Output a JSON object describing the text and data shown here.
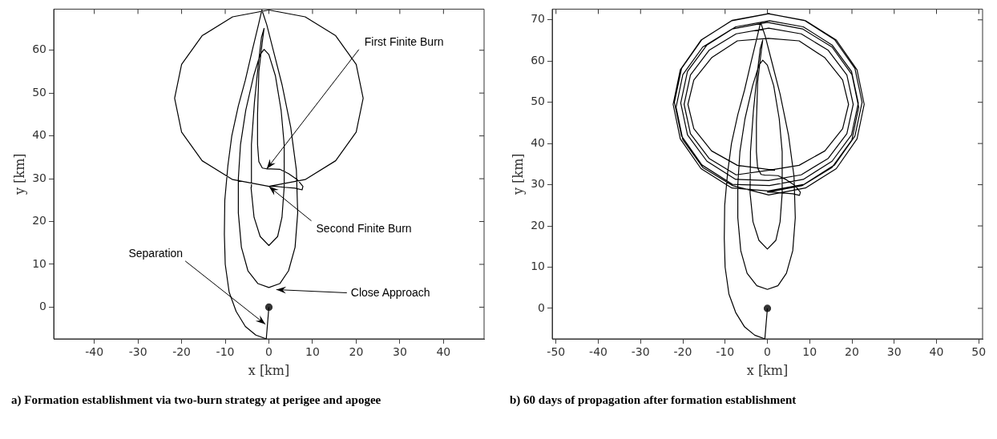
{
  "chart_data": [
    {
      "type": "line",
      "xlabel": "x [km]",
      "ylabel": "y [km]",
      "xlim": [
        -49.3,
        49.3
      ],
      "ylim": [
        -7.4,
        69.6
      ],
      "xticks": [
        -40,
        -30,
        -20,
        -10,
        0,
        10,
        20,
        30,
        40
      ],
      "yticks": [
        0,
        10,
        20,
        30,
        40,
        50,
        60
      ],
      "grid": false,
      "marker": "none",
      "series": [
        {
          "color": "#000000",
          "x": [
            0,
            -0.6,
            -3,
            -5.4,
            -7.5,
            -9.1,
            -10,
            -10.2,
            -10.1,
            -9.4,
            -8.5,
            -7,
            -5.4,
            -3.8,
            -2.5,
            -1.6,
            -0.5,
            1,
            3,
            5,
            6.3,
            6.6,
            6,
            4.5,
            2.5,
            0,
            -2.5,
            -4.8,
            -6.3,
            -7,
            -7,
            -6.5,
            -5.3,
            -3.5,
            -2,
            -1.1,
            0,
            1.5,
            2.8,
            3.5,
            3.5,
            3,
            2,
            0,
            -2,
            -3.4,
            -4.1,
            -4,
            -3.3,
            -2.4,
            -1.7,
            -1.1,
            -1.5,
            -2.3,
            -2.6,
            -2.6,
            -2.3,
            -1.5,
            -0.5,
            0.5,
            2.5,
            4.5,
            6.5,
            7.8,
            7.6,
            6,
            3.5,
            1.5,
            0,
            8.3,
            15.3,
            20.0,
            21.6,
            20.0,
            15.3,
            8.3,
            0,
            -8.3,
            -15.3,
            -20.0,
            -21.6,
            -20.0,
            -15.3,
            -8.3,
            0
          ],
          "values": [
            0,
            -7.4,
            -6.5,
            -4.5,
            -1,
            3.5,
            10,
            17,
            25,
            33,
            40,
            47,
            53,
            60,
            65.5,
            69.4,
            66,
            60,
            52,
            42,
            32,
            22,
            14,
            8.5,
            5.5,
            4.6,
            5.5,
            8.5,
            14,
            22,
            30,
            38,
            46,
            54,
            59,
            60.2,
            59,
            54,
            46,
            38,
            28,
            21,
            16.5,
            14.4,
            16.5,
            21,
            28,
            38,
            48,
            57,
            63,
            65.1,
            62,
            55,
            45,
            38,
            34,
            32.5,
            32.3,
            32.3,
            32.2,
            31.2,
            29.8,
            28.2,
            27.4,
            27.8,
            28,
            28.2,
            28.2,
            29.8,
            34.2,
            40.9,
            48.8,
            56.7,
            63.4,
            67.8,
            69.4,
            67.8,
            63.4,
            56.7,
            48.8,
            40.9,
            34.2,
            29.8,
            28.2
          ]
        },
        {
          "type": "scatter",
          "marker": "circle",
          "color": "#333333",
          "x": [
            0
          ],
          "values": [
            0
          ]
        }
      ],
      "annotations": [
        {
          "text": "First Finite Burn",
          "x": -0.5,
          "y": 32.3
        },
        {
          "text": "Second Finite Burn",
          "x": 0,
          "y": 28.2
        },
        {
          "text": "Separation",
          "x": -0.8,
          "y": -4
        },
        {
          "text": "Close Approach",
          "x": 1.7,
          "y": 4.1
        },
        "a) Formation establishment via two-burn strategy at perigee and apogee"
      ]
    },
    {
      "type": "line",
      "xlabel": "x [km]",
      "ylabel": "y [km]",
      "xlim": [
        -50.9,
        50.9
      ],
      "ylim": [
        -7.4,
        72.6
      ],
      "xticks": [
        -50,
        -40,
        -30,
        -20,
        -10,
        0,
        10,
        20,
        30,
        40,
        50
      ],
      "yticks": [
        0,
        10,
        20,
        30,
        40,
        50,
        60,
        70
      ],
      "grid": false,
      "marker": "none",
      "series": [
        {
          "color": "#000000",
          "x": [
            0,
            -0.6,
            -3,
            -5.4,
            -7.5,
            -9.1,
            -10,
            -10.2,
            -10.1,
            -9.4,
            -8.5,
            -7,
            -5.4,
            -3.8,
            -2.5,
            -1.6,
            -0.5,
            1,
            3,
            5,
            6.3,
            6.6,
            6,
            4.5,
            2.5,
            0,
            -2.5,
            -4.8,
            -6.3,
            -7,
            -7,
            -6.5,
            -5.3,
            -3.5,
            -2,
            -1.1,
            0,
            1.5,
            2.8,
            3.5,
            3.5,
            3,
            2,
            0,
            -2,
            -3.4,
            -4.1,
            -4,
            -3.3,
            -2.4,
            -1.7,
            -1.1,
            -1.5,
            -2.3,
            -2.6,
            -2.6,
            -2.3,
            -1.5,
            -0.5,
            0.5,
            2.5,
            4.5,
            6.5,
            7.8,
            7.6,
            6,
            3.5,
            1.5,
            0,
            8.3,
            15.3,
            20.0,
            21.6,
            20.0,
            15.3,
            8.3,
            0,
            -8.3,
            -15.3,
            -20.0,
            -21.6,
            -20.0,
            -15.3,
            -8.3,
            0.3,
            9.0,
            16.3,
            21.2,
            22.9,
            21.2,
            16.3,
            9.0,
            0.3,
            -8.4,
            -15.7,
            -20.6,
            -22.3,
            -20.6,
            -15.7,
            -8.4,
            0.2,
            8.7,
            15.9,
            20.7,
            22.4,
            20.7,
            15.9,
            8.7,
            0.2,
            -8.3,
            -15.5,
            -20.3,
            -22.0,
            -20.3,
            -15.5,
            -8.3,
            0.5,
            8.5,
            15.3,
            19.9,
            21.5,
            19.9,
            15.3,
            8.5,
            0.5,
            -7.5,
            -14.3,
            -18.9,
            -20.5,
            -18.9,
            -14.3,
            -7.5,
            0.3,
            8.0,
            14.4,
            18.8,
            20.3,
            18.8,
            14.4,
            8.0,
            0.3,
            -7.4,
            -13.8,
            -18.2,
            -19.7,
            -18.2,
            -13.8,
            -7.4,
            0.2,
            7.5,
            13.6,
            17.8,
            19.2,
            17.8,
            13.6,
            7.5,
            0.2,
            -7.1,
            -13.2,
            -17.4,
            -18.8,
            -17.4,
            -13.2,
            -7.1,
            1.8
          ],
          "values": [
            0,
            -7.4,
            -6.5,
            -4.5,
            -1,
            3.5,
            10,
            17,
            25,
            33,
            40,
            47,
            53,
            60,
            65.5,
            69.4,
            66,
            60,
            52,
            42,
            32,
            22,
            14,
            8.5,
            5.5,
            4.6,
            5.5,
            8.5,
            14,
            22,
            30,
            38,
            46,
            54,
            59,
            60.2,
            59,
            54,
            46,
            38,
            28,
            21,
            16.5,
            14.4,
            16.5,
            21,
            28,
            38,
            48,
            57,
            63,
            65.1,
            62,
            55,
            45,
            38,
            34,
            32.5,
            32.3,
            32.3,
            32.2,
            31.2,
            29.8,
            28.2,
            27.4,
            27.8,
            28,
            28.2,
            28.2,
            29.8,
            34.2,
            40.9,
            48.8,
            56.7,
            63.4,
            67.8,
            69.4,
            67.8,
            63.4,
            56.7,
            48.8,
            40.9,
            34.2,
            29.8,
            27.5,
            29.2,
            33.9,
            41.1,
            49.5,
            57.9,
            65.1,
            69.8,
            71.5,
            69.8,
            65.1,
            57.9,
            49.5,
            41.1,
            33.9,
            29.2,
            28.5,
            30.1,
            34.8,
            41.8,
            50,
            58.2,
            65.2,
            69.9,
            71.5,
            69.9,
            65.2,
            58.2,
            50,
            41.8,
            34.8,
            30.1,
            29.8,
            31.3,
            35.7,
            42.1,
            49.8,
            57.5,
            63.9,
            68.3,
            69.8,
            68.3,
            63.9,
            57.5,
            49.8,
            42.1,
            35.7,
            31.3,
            31.0,
            32.4,
            36.4,
            42.4,
            49.5,
            56.6,
            62.6,
            66.6,
            68.0,
            66.6,
            62.6,
            56.6,
            49.5,
            42.4,
            36.4,
            32.4,
            33.5,
            34.7,
            38.2,
            43.6,
            49.5,
            55.4,
            60.8,
            64.9,
            65.5,
            64.9,
            60.8,
            55.4,
            49.5,
            43.6,
            38.2,
            34.7,
            33.5
          ]
        },
        {
          "type": "scatter",
          "marker": "circle",
          "color": "#333333",
          "x": [
            0
          ],
          "values": [
            0
          ]
        }
      ],
      "annotations": [
        "b) 60 days of propagation after formation establishment"
      ]
    }
  ]
}
